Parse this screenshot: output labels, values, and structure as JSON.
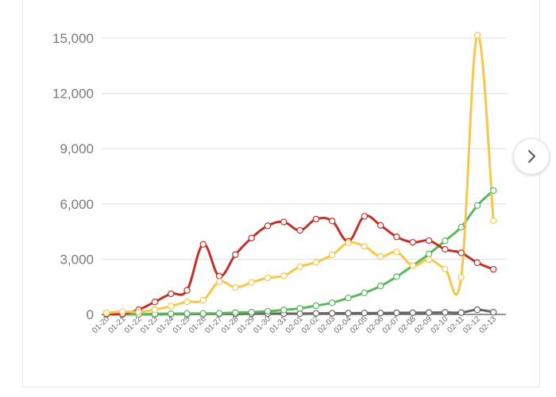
{
  "nav": {
    "next_icon": "chevron-right-icon"
  },
  "chart_data": {
    "type": "line",
    "title": "",
    "xlabel": "",
    "ylabel": "",
    "ylim": [
      0,
      15000
    ],
    "yticks": [
      0,
      3000,
      6000,
      9000,
      12000,
      15000
    ],
    "ytick_labels": [
      "0",
      "3,000",
      "6,000",
      "9,000",
      "12,000",
      "15,000"
    ],
    "grid": "horizontal",
    "categories": [
      "01-20",
      "01-21",
      "01-22",
      "01-23",
      "01-24",
      "01-25",
      "01-26",
      "01-27",
      "01-28",
      "01-29",
      "01-30",
      "01-31",
      "02-01",
      "02-02",
      "02-03",
      "02-04",
      "02-05",
      "02-06",
      "02-07",
      "02-08",
      "02-09",
      "02-10",
      "02-11",
      "02-12",
      "02-13"
    ],
    "series": [
      {
        "color": "#f5c84c",
        "values": [
          77,
          149,
          131,
          259,
          444,
          688,
          769,
          1771,
          1459,
          1737,
          1982,
          2102,
          2590,
          2829,
          3235,
          3887,
          3694,
          3143,
          3385,
          2652,
          2973,
          2467,
          2015,
          15152,
          5090
        ]
      },
      {
        "color": "#c0322b",
        "values": [
          27,
          26,
          257,
          680,
          1118,
          1309,
          3806,
          2077,
          3248,
          4148,
          4812,
          5019,
          4562,
          5173,
          5072,
          3971,
          5328,
          4833,
          4214,
          3916,
          4008,
          3536,
          3342,
          2807,
          2450
        ]
      },
      {
        "color": "#5cb85c",
        "values": [
          0,
          0,
          0,
          34,
          38,
          49,
          51,
          60,
          103,
          124,
          171,
          243,
          328,
          475,
          632,
          892,
          1171,
          1542,
          2049,
          2649,
          3281,
          3996,
          4740,
          5911,
          6723
        ]
      },
      {
        "color": "#666666",
        "values": [
          0,
          0,
          0,
          8,
          16,
          15,
          24,
          26,
          26,
          38,
          43,
          46,
          45,
          57,
          64,
          65,
          73,
          73,
          86,
          89,
          97,
          108,
          97,
          254,
          121
        ]
      }
    ]
  }
}
